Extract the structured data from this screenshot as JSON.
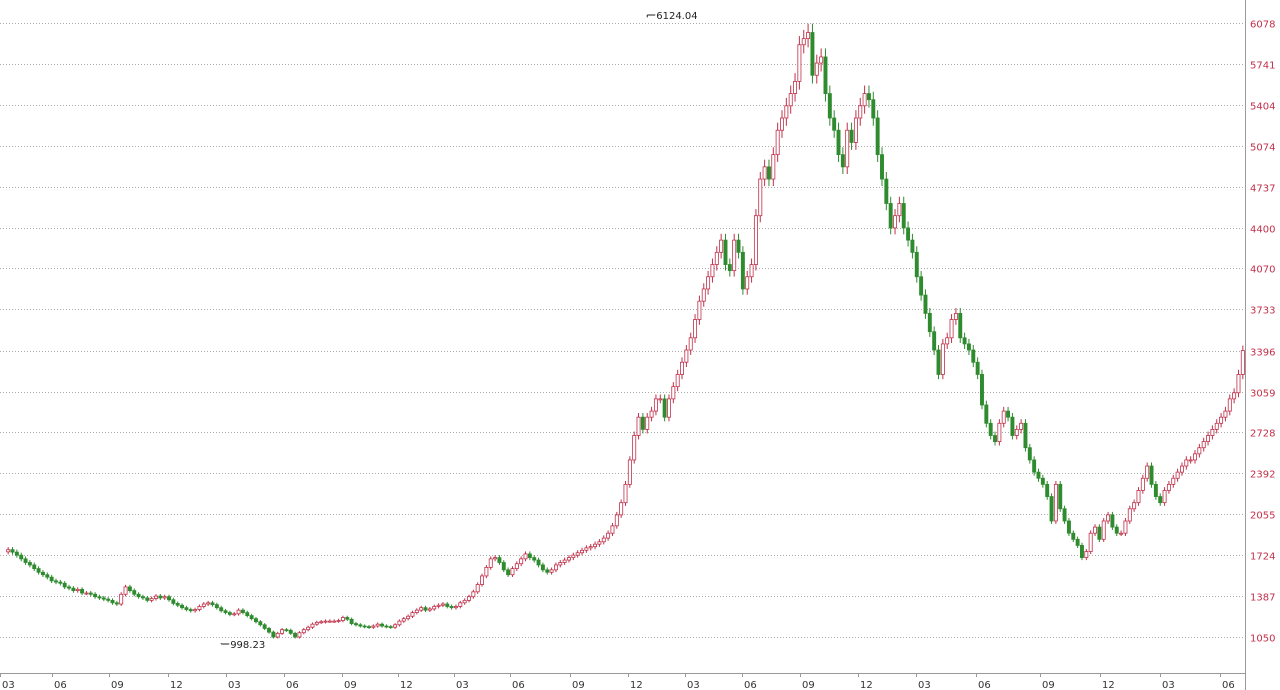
{
  "chart_data": {
    "type": "candlestick",
    "title": "",
    "xlabel": "",
    "ylabel": "",
    "y_ticks": [
      1050,
      1387,
      1724,
      2055,
      2392,
      2728,
      3059,
      3396,
      3733,
      4070,
      4400,
      4737,
      5074,
      5404,
      5741,
      6078
    ],
    "x_ticks": [
      "03",
      "06",
      "09",
      "12",
      "03",
      "06",
      "09",
      "12",
      "03",
      "06",
      "09",
      "12",
      "03",
      "06",
      "09",
      "12",
      "03",
      "06",
      "09",
      "12",
      "03",
      "06"
    ],
    "grid": true,
    "y_axis_side": "right",
    "colors": {
      "up": "#c0304a",
      "down": "#2e8b2e",
      "grid": "#aaaaaa",
      "axis_text": "#c0304a"
    },
    "annotations": [
      {
        "label": "6124.04",
        "x": 147,
        "y": 6124.04
      },
      {
        "label": "998.23",
        "x": 49,
        "y": 998.23
      }
    ],
    "close": [
      1765,
      1745,
      1720,
      1690,
      1660,
      1640,
      1610,
      1580,
      1560,
      1540,
      1510,
      1500,
      1490,
      1460,
      1450,
      1430,
      1440,
      1410,
      1410,
      1400,
      1380,
      1370,
      1360,
      1350,
      1330,
      1320,
      1400,
      1460,
      1430,
      1400,
      1380,
      1370,
      1350,
      1365,
      1385,
      1370,
      1380,
      1355,
      1325,
      1310,
      1290,
      1275,
      1265,
      1275,
      1300,
      1320,
      1330,
      1315,
      1290,
      1265,
      1250,
      1235,
      1240,
      1270,
      1250,
      1225,
      1200,
      1175,
      1150,
      1120,
      1090,
      1050,
      1080,
      1110,
      1105,
      1080,
      1050,
      1085,
      1110,
      1130,
      1155,
      1170,
      1175,
      1180,
      1180,
      1180,
      1185,
      1210,
      1195,
      1160,
      1150,
      1140,
      1135,
      1130,
      1140,
      1155,
      1140,
      1135,
      1130,
      1150,
      1180,
      1200,
      1220,
      1250,
      1270,
      1290,
      1270,
      1280,
      1300,
      1310,
      1320,
      1300,
      1290,
      1300,
      1330,
      1350,
      1380,
      1420,
      1480,
      1550,
      1620,
      1690,
      1700,
      1660,
      1600,
      1560,
      1610,
      1650,
      1690,
      1730,
      1700,
      1680,
      1640,
      1600,
      1580,
      1600,
      1640,
      1660,
      1680,
      1700,
      1720,
      1740,
      1760,
      1780,
      1790,
      1810,
      1830,
      1860,
      1900,
      1960,
      2050,
      2150,
      2300,
      2500,
      2700,
      2850,
      2750,
      2850,
      2900,
      3000,
      3000,
      2850,
      3000,
      3100,
      3200,
      3300,
      3400,
      3500,
      3650,
      3800,
      3900,
      4000,
      4100,
      4200,
      4300,
      4100,
      4050,
      4300,
      4200,
      3900,
      4000,
      4100,
      4500,
      4800,
      4900,
      4800,
      5000,
      5200,
      5300,
      5400,
      5500,
      5600,
      5900,
      5950,
      6000,
      5650,
      5750,
      5800,
      5500,
      5300,
      5200,
      5000,
      4900,
      5200,
      5100,
      5300,
      5400,
      5500,
      5450,
      5300,
      5000,
      4800,
      4600,
      4400,
      4500,
      4600,
      4400,
      4300,
      4200,
      4000,
      3850,
      3700,
      3550,
      3400,
      3200,
      3450,
      3500,
      3650,
      3700,
      3500,
      3450,
      3400,
      3300,
      3200,
      2950,
      2800,
      2700,
      2650,
      2800,
      2900,
      2850,
      2700,
      2750,
      2800,
      2600,
      2500,
      2400,
      2350,
      2300,
      2200,
      2000,
      2300,
      2100,
      2000,
      1900,
      1850,
      1800,
      1700,
      1750,
      1900,
      1950,
      1850,
      2000,
      2050,
      1950,
      1900,
      1900,
      2000,
      2100,
      2150,
      2250,
      2350,
      2450,
      2300,
      2200,
      2150,
      2250,
      2300,
      2350,
      2400,
      2450,
      2500,
      2500,
      2550,
      2600,
      2650,
      2700,
      2750,
      2800,
      2850,
      2900,
      3000,
      3050,
      3200,
      3396
    ]
  }
}
